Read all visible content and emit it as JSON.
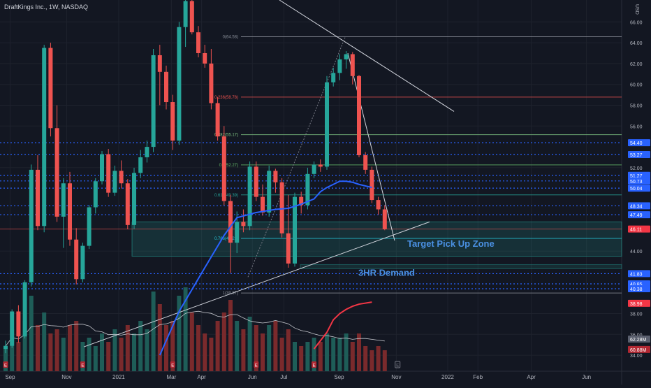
{
  "header": {
    "title": "DraftKings Inc., 1W, NASDAQ",
    "currency": "USD"
  },
  "chart_data": {
    "type": "candlestick",
    "x_labels": [
      {
        "label": "Sep",
        "i": 0.7
      },
      {
        "label": "Nov",
        "i": 9.5
      },
      {
        "label": "2021",
        "i": 17.6
      },
      {
        "label": "Mar",
        "i": 25.8
      },
      {
        "label": "Apr",
        "i": 30.5
      },
      {
        "label": "Jun",
        "i": 38.4
      },
      {
        "label": "Jul",
        "i": 43.3
      },
      {
        "label": "Sep",
        "i": 51.9
      },
      {
        "label": "Nov",
        "i": 60.8
      },
      {
        "label": "2022",
        "i": 68.8
      },
      {
        "label": "Feb",
        "i": 73.5
      },
      {
        "label": "Apr",
        "i": 81.8
      },
      {
        "label": "Jun",
        "i": 90.4
      }
    ],
    "y_ticks": [
      66,
      64,
      62,
      60,
      58,
      56,
      52,
      44,
      38,
      36,
      34
    ],
    "ylim": [
      33.2,
      68.1
    ],
    "candles": [
      [
        34.6,
        35.4,
        34.2,
        34.9
      ],
      [
        34.9,
        38.4,
        34.7,
        38.2
      ],
      [
        38.2,
        38.8,
        35.2,
        35.8
      ],
      [
        35.8,
        41.2,
        35.6,
        41.0
      ],
      [
        41.0,
        52.3,
        40.6,
        51.8
      ],
      [
        51.8,
        53.2,
        46.0,
        46.4
      ],
      [
        46.4,
        63.8,
        45.8,
        63.5
      ],
      [
        63.5,
        64.0,
        55.0,
        55.8
      ],
      [
        55.8,
        58.0,
        46.8,
        47.3
      ],
      [
        47.3,
        51.0,
        44.3,
        50.5
      ],
      [
        50.5,
        51.6,
        44.5,
        45.1
      ],
      [
        45.1,
        46.2,
        40.8,
        41.3
      ],
      [
        41.3,
        44.8,
        41.0,
        44.5
      ],
      [
        44.5,
        48.4,
        44.2,
        48.2
      ],
      [
        48.2,
        51.0,
        47.6,
        50.7
      ],
      [
        50.7,
        53.6,
        50.4,
        53.3
      ],
      [
        53.3,
        53.8,
        49.2,
        49.6
      ],
      [
        49.6,
        52.2,
        49.3,
        51.7
      ],
      [
        51.7,
        52.7,
        50.0,
        50.5
      ],
      [
        50.5,
        50.9,
        46.1,
        46.5
      ],
      [
        46.5,
        52.0,
        46.1,
        51.5
      ],
      [
        51.5,
        53.7,
        51.0,
        53.0
      ],
      [
        53.0,
        54.6,
        52.5,
        54.0
      ],
      [
        54.0,
        63.4,
        53.5,
        62.8
      ],
      [
        62.8,
        63.8,
        58.0,
        61.2
      ],
      [
        61.2,
        61.8,
        57.6,
        58.3
      ],
      [
        58.3,
        59.0,
        53.7,
        54.6
      ],
      [
        54.6,
        66.0,
        54.2,
        65.5
      ],
      [
        65.5,
        68.1,
        63.6,
        68.0
      ],
      [
        68.0,
        68.1,
        64.8,
        65.0
      ],
      [
        65.0,
        65.6,
        62.6,
        63.0
      ],
      [
        63.0,
        63.8,
        61.6,
        62.0
      ],
      [
        62.0,
        63.4,
        57.6,
        58.2
      ],
      [
        58.2,
        58.8,
        54.6,
        55.0
      ],
      [
        55.0,
        56.0,
        48.4,
        48.8
      ],
      [
        48.8,
        49.4,
        41.9,
        44.8
      ],
      [
        44.8,
        47.8,
        43.8,
        46.8
      ],
      [
        46.8,
        48.0,
        45.8,
        46.4
      ],
      [
        46.4,
        52.6,
        46.0,
        52.1
      ],
      [
        52.1,
        52.6,
        48.8,
        49.2
      ],
      [
        49.2,
        50.4,
        47.4,
        47.7
      ],
      [
        47.7,
        52.2,
        47.3,
        51.7
      ],
      [
        51.7,
        51.9,
        49.6,
        50.6
      ],
      [
        50.6,
        51.0,
        45.3,
        45.7
      ],
      [
        45.7,
        49.4,
        42.4,
        42.8
      ],
      [
        42.8,
        49.6,
        42.5,
        49.2
      ],
      [
        49.2,
        49.7,
        47.6,
        48.4
      ],
      [
        48.4,
        52.0,
        48.0,
        51.4
      ],
      [
        51.4,
        52.6,
        51.0,
        52.3
      ],
      [
        52.3,
        52.8,
        51.6,
        52.1
      ],
      [
        52.1,
        60.8,
        51.8,
        60.2
      ],
      [
        60.2,
        61.6,
        59.8,
        61.1
      ],
      [
        61.1,
        62.9,
        60.4,
        62.4
      ],
      [
        62.4,
        63.2,
        61.5,
        62.9
      ],
      [
        62.9,
        63.1,
        60.0,
        60.8
      ],
      [
        60.8,
        60.9,
        53.0,
        53.2
      ],
      [
        53.2,
        53.5,
        51.4,
        51.8
      ],
      [
        51.8,
        52.1,
        48.6,
        48.9
      ],
      [
        48.9,
        49.2,
        47.5,
        48.0
      ],
      [
        48.0,
        48.4,
        46.0,
        46.1
      ]
    ],
    "volume": [
      0.3,
      0.5,
      0.35,
      0.6,
      0.9,
      0.55,
      0.7,
      0.45,
      0.5,
      0.4,
      0.55,
      0.6,
      0.35,
      0.4,
      0.3,
      0.45,
      0.35,
      0.5,
      0.4,
      0.55,
      0.45,
      0.6,
      0.5,
      0.95,
      0.8,
      0.55,
      0.6,
      0.9,
      1.0,
      0.7,
      0.55,
      0.45,
      0.4,
      0.6,
      0.7,
      0.85,
      0.6,
      0.5,
      0.65,
      0.55,
      0.45,
      0.55,
      0.6,
      0.4,
      0.5,
      0.35,
      0.3,
      0.35,
      0.4,
      0.35,
      0.45,
      0.4,
      0.4,
      0.45,
      0.35,
      0.45,
      0.3,
      0.25,
      0.3,
      0.25
    ],
    "ma_points": [
      [
        24,
        34.0
      ],
      [
        27,
        38.2
      ],
      [
        31,
        42.4
      ],
      [
        34,
        45.5
      ],
      [
        36,
        47.2
      ],
      [
        39,
        47.7
      ],
      [
        42,
        48.0
      ],
      [
        44,
        48.1
      ],
      [
        46,
        48.5
      ],
      [
        48,
        49.0
      ],
      [
        49,
        49.7
      ],
      [
        50,
        50.1
      ],
      [
        51,
        50.4
      ],
      [
        52,
        50.7
      ],
      [
        53,
        50.7
      ],
      [
        54,
        50.6
      ],
      [
        55,
        50.4
      ],
      [
        57,
        50.1
      ]
    ],
    "price_labels": [
      {
        "text": "54.40",
        "y": 54.4,
        "color": "#2962ff"
      },
      {
        "text": "53.27",
        "y": 53.27,
        "color": "#2962ff"
      },
      {
        "text": "51.27",
        "y": 51.27,
        "color": "#2962ff"
      },
      {
        "text": "50.73",
        "y": 50.73,
        "color": "#2962ff"
      },
      {
        "text": "50.04",
        "y": 50.04,
        "color": "#2962ff"
      },
      {
        "text": "48.34",
        "y": 48.34,
        "color": "#2962ff"
      },
      {
        "text": "47.49",
        "y": 47.49,
        "color": "#2962ff"
      },
      {
        "text": "46.11",
        "y": 46.11,
        "color": "#f23645"
      },
      {
        "text": "41.83",
        "y": 41.83,
        "color": "#2962ff"
      },
      {
        "text": "40.85",
        "y": 40.85,
        "color": "#2962ff"
      },
      {
        "text": "40.38",
        "y": 40.38,
        "color": "#2962ff"
      },
      {
        "text": "38.98",
        "y": 38.98,
        "color": "#f23645"
      },
      {
        "text": "62.28M",
        "y": 35.55,
        "color": "#5a5f6e"
      },
      {
        "text": "60.88M",
        "y": 34.55,
        "color": "#b22833"
      }
    ],
    "fib_levels": [
      {
        "label": "0(64.58)",
        "value": 64.58,
        "color": "#8a8f99"
      },
      {
        "label": "0.236(58.78)",
        "value": 58.78,
        "color": "#ef5350"
      },
      {
        "label": "0.382(55.17)",
        "value": 55.17,
        "color": "#81c784"
      },
      {
        "label": "0.5(52.27)",
        "value": 52.27,
        "color": "#66bb6a"
      },
      {
        "label": "0.618(49.39)",
        "value": 49.39,
        "color": "#26a69a"
      },
      {
        "label": "0.786(45.21)",
        "value": 45.21,
        "color": "#26c6da"
      },
      {
        "label": "1(39.97)",
        "value": 39.97,
        "color": "#8a8f99"
      }
    ],
    "annotations": [
      {
        "text": "Target Pick Up Zone",
        "color": "#4a90e2"
      },
      {
        "text": "3HR Demand",
        "color": "#4a90e2"
      }
    ],
    "colors": {
      "up": "#26a69a",
      "down": "#ef5350",
      "bg": "#131722",
      "ma": "#2962ff",
      "vol_up": "#1e5d58",
      "vol_down": "#7a2a2c",
      "grid": "#1e222d",
      "axis_text": "#b2b5be"
    }
  }
}
